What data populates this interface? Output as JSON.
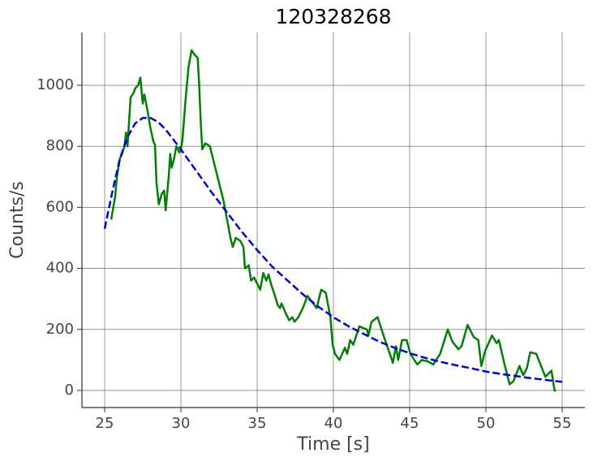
{
  "chart_data": {
    "type": "line",
    "title": "120328268",
    "xlabel": "Time [s]",
    "ylabel": "Counts/s",
    "xlim": [
      23.51,
      56.49
    ],
    "ylim": [
      -56,
      1173
    ],
    "xticks": [
      25,
      30,
      35,
      40,
      45,
      50,
      55
    ],
    "yticks": [
      0,
      200,
      400,
      600,
      800,
      1000
    ],
    "grid": true,
    "series": [
      {
        "color": "#008000",
        "linestyle": "solid",
        "x": [
          25.43,
          25.6,
          25.7,
          25.8,
          26.0,
          26.1,
          26.3,
          26.4,
          26.5,
          26.6,
          26.7,
          26.9,
          27.0,
          27.2,
          27.34,
          27.5,
          27.6,
          27.8,
          28.0,
          28.2,
          28.3,
          28.4,
          28.55,
          28.75,
          28.9,
          29.0,
          29.2,
          29.3,
          29.4,
          29.55,
          29.7,
          29.9,
          30.0,
          30.1,
          30.3,
          30.5,
          30.7,
          30.9,
          31.1,
          31.2,
          31.3,
          31.4,
          31.6,
          31.9,
          32.1,
          32.5,
          32.8,
          33.1,
          33.25,
          33.4,
          33.6,
          33.9,
          34.1,
          34.2,
          34.45,
          34.6,
          34.8,
          35.2,
          35.4,
          35.6,
          35.75,
          35.9,
          36.1,
          36.35,
          36.5,
          36.6,
          36.9,
          37.1,
          37.3,
          37.45,
          37.7,
          38.0,
          38.3,
          38.6,
          38.9,
          39.2,
          39.5,
          39.8,
          39.95,
          40.1,
          40.4,
          40.75,
          40.9,
          41.1,
          41.3,
          41.7,
          42.2,
          42.3,
          42.5,
          42.9,
          43.35,
          43.7,
          43.9,
          44.1,
          44.25,
          44.5,
          44.8,
          45.05,
          45.5,
          45.8,
          46.2,
          46.55,
          47.0,
          47.5,
          47.8,
          48.2,
          48.4,
          48.8,
          49.2,
          49.5,
          49.7,
          49.95,
          50.4,
          50.7,
          50.85,
          51.2,
          51.55,
          51.8,
          52.2,
          52.45,
          52.7,
          52.9,
          53.3,
          53.9,
          54.3,
          54.5,
          54.6
        ],
        "values": [
          560,
          610,
          640,
          700,
          760,
          770,
          800,
          845,
          800,
          880,
          960,
          975,
          990,
          1000,
          1025,
          940,
          970,
          920,
          860,
          815,
          805,
          680,
          610,
          645,
          655,
          590,
          700,
          775,
          730,
          760,
          800,
          780,
          790,
          820,
          950,
          1060,
          1115,
          1100,
          1090,
          1000,
          880,
          790,
          810,
          800,
          760,
          680,
          620,
          540,
          500,
          470,
          500,
          490,
          470,
          400,
          410,
          360,
          370,
          330,
          385,
          360,
          380,
          350,
          320,
          280,
          270,
          285,
          250,
          230,
          240,
          225,
          240,
          270,
          310,
          290,
          270,
          330,
          320,
          240,
          150,
          120,
          100,
          140,
          120,
          165,
          150,
          210,
          200,
          180,
          225,
          240,
          170,
          120,
          90,
          145,
          100,
          165,
          165,
          120,
          85,
          100,
          95,
          85,
          120,
          200,
          160,
          135,
          145,
          215,
          175,
          165,
          80,
          130,
          180,
          155,
          165,
          90,
          20,
          30,
          80,
          50,
          75,
          125,
          120,
          45,
          65,
          0,
          0
        ]
      },
      {
        "color": "#0000dd",
        "linestyle": "dashed",
        "x": [
          25,
          25.5,
          26,
          26.5,
          27,
          27.5,
          28,
          28.5,
          29,
          30,
          31,
          32,
          33,
          34,
          35,
          36,
          37,
          38,
          39,
          40,
          41,
          42,
          43,
          44,
          45,
          46,
          47,
          48,
          49,
          50,
          51,
          52,
          53,
          54,
          55
        ],
        "values": [
          530,
          650,
          760,
          830,
          875,
          893,
          893,
          880,
          855,
          790,
          720,
          650,
          585,
          520,
          460,
          405,
          360,
          315,
          275,
          240,
          210,
          185,
          160,
          140,
          122,
          107,
          94,
          83,
          73,
          62,
          54,
          47,
          40,
          34,
          28
        ]
      }
    ]
  }
}
